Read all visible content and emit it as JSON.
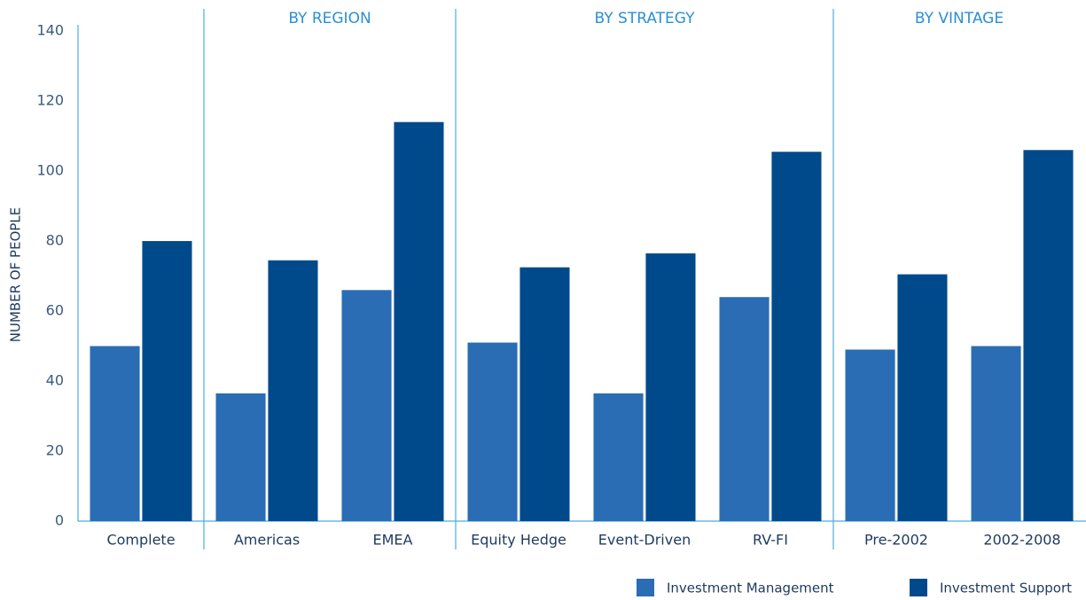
{
  "chart_data": {
    "type": "bar",
    "y_label": "NUMBER OF PEOPLE",
    "groups": [
      {
        "name": null,
        "categories": [
          "Complete"
        ]
      },
      {
        "name": "BY REGION",
        "categories": [
          "Americas",
          "EMEA"
        ]
      },
      {
        "name": "BY STRATEGY",
        "categories": [
          "Equity Hedge",
          "Event-Driven",
          "RV-FI"
        ]
      },
      {
        "name": "BY VINTAGE",
        "categories": [
          "Pre-2002",
          "2002-2008"
        ]
      }
    ],
    "series": [
      {
        "name": "Investment Management",
        "color": "#2a6db5",
        "values": [
          50,
          36.5,
          66,
          51,
          36.5,
          64,
          49,
          50
        ]
      },
      {
        "name": "Investment Support",
        "color": "#004a8c",
        "values": [
          80,
          74.5,
          114,
          72.5,
          76.5,
          105.5,
          70.5,
          106
        ]
      }
    ],
    "ylim": [
      0,
      140
    ],
    "yticks": [
      0,
      20,
      40,
      60,
      80,
      100,
      120,
      140
    ],
    "grid": false
  }
}
